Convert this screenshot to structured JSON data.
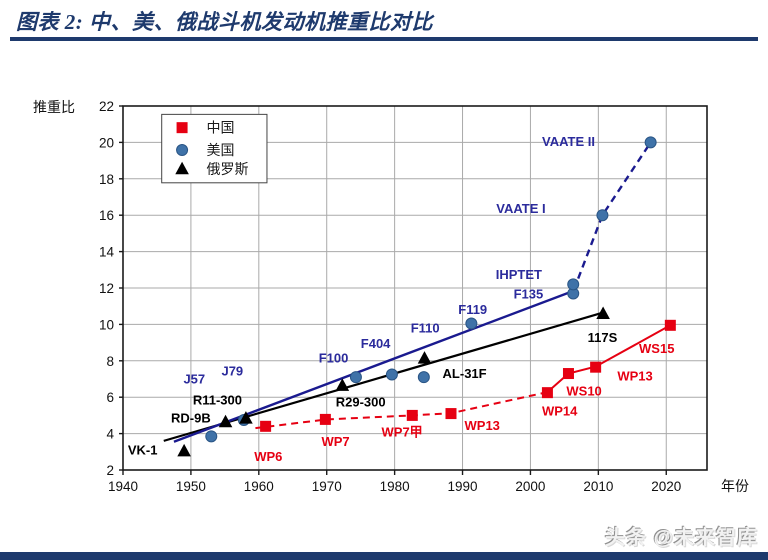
{
  "page": {
    "title": "图表 2:  中、美、俄战斗机发动机推重比对比",
    "watermark": "头条 @未来智库"
  },
  "colors": {
    "title_navy": "#1e3a6d",
    "grid": "#aaaaaa",
    "axis": "#1a1a1a",
    "tick_text": "#111111",
    "china_red": "#e60012",
    "us_marker_blue": "#3f72a8",
    "us_marker_edge": "#2a5585",
    "us_line_navy": "#1a1a8f",
    "us_label_navy": "#2b2b9c",
    "russia_black": "#000000"
  },
  "chart_data": {
    "type": "scatter",
    "title": "",
    "ylabel": "推重比",
    "xlabel": "年份",
    "xlim": [
      1940,
      2026
    ],
    "ylim": [
      2,
      22
    ],
    "x_ticks": [
      1940,
      1950,
      1960,
      1970,
      1980,
      1990,
      2000,
      2010,
      2020
    ],
    "y_ticks": [
      2,
      4,
      6,
      8,
      10,
      12,
      14,
      16,
      18,
      20,
      22
    ],
    "grid": true,
    "legend": {
      "box": {
        "x1": 1945.7,
        "y1": 21.54,
        "x2": 1961.2,
        "y2": 17.78
      },
      "marker_x": 1948.7,
      "text_x": 1952.3,
      "rows": [
        {
          "label": "中国",
          "marker": "square",
          "color": "#e60012",
          "y": 20.81
        },
        {
          "label": "美国",
          "marker": "circle",
          "color": "#3f72a8",
          "y": 19.58
        },
        {
          "label": "俄罗斯",
          "marker": "triangle",
          "color": "#000000",
          "y": 18.55
        }
      ]
    },
    "series": [
      {
        "name": "中国",
        "marker": "square",
        "color": "#e60012",
        "label_color": "#e60012",
        "points": [
          {
            "label": "WP6",
            "x": 1961.0,
            "y": 4.4,
            "lx": 1961.4,
            "ly": 2.75
          },
          {
            "label": "WP7",
            "x": 1969.8,
            "y": 4.78,
            "lx": 1971.3,
            "ly": 3.56
          },
          {
            "label": "WP7甲",
            "x": 1982.6,
            "y": 5.0,
            "lx": 1981.1,
            "ly": 4.08
          },
          {
            "label": "WP13",
            "x": 1988.3,
            "y": 5.1,
            "lx": 1992.9,
            "ly": 4.44
          },
          {
            "label": "WP14",
            "x": 2002.5,
            "y": 6.25,
            "lx": 2004.3,
            "ly": 5.23
          },
          {
            "label": "WS10",
            "x": 2005.6,
            "y": 7.3,
            "lx": 2007.9,
            "ly": 6.35
          },
          {
            "label": "WP13",
            "x": 2009.6,
            "y": 7.65,
            "lx": 2015.4,
            "ly": 7.17
          },
          {
            "label": "WS15",
            "x": 2020.6,
            "y": 9.95,
            "lx": 2018.6,
            "ly": 8.68
          }
        ]
      },
      {
        "name": "美国",
        "marker": "circle",
        "color": "#3f72a8",
        "label_color": "#2b2b9c",
        "points": [
          {
            "label": "J57",
            "x": 1953.0,
            "y": 3.85,
            "lx": 1950.5,
            "ly": 7.0
          },
          {
            "label": "J79",
            "x": 1957.8,
            "y": 4.75,
            "lx": 1956.1,
            "ly": 7.45
          },
          {
            "label": "F100",
            "x": 1974.3,
            "y": 7.1,
            "lx": 1971.0,
            "ly": 8.15
          },
          {
            "label": "F404",
            "x": 1979.6,
            "y": 7.25,
            "lx": 1977.2,
            "ly": 8.95
          },
          {
            "label": "F110",
            "x": 1984.3,
            "y": 7.1,
            "lx": 1984.5,
            "ly": 9.8
          },
          {
            "label": "F119",
            "x": 1991.3,
            "y": 10.05,
            "lx": 1991.5,
            "ly": 10.82
          },
          {
            "label": "F135",
            "x": 2006.3,
            "y": 11.7,
            "lx": 1999.7,
            "ly": 11.66
          },
          {
            "label": "IHPTET",
            "x": 2006.3,
            "y": 12.2,
            "lx": 1998.3,
            "ly": 12.75
          },
          {
            "label": "VAATE I",
            "x": 2010.6,
            "y": 16.0,
            "lx": 1998.6,
            "ly": 16.37
          },
          {
            "label": "VAATE II",
            "x": 2017.7,
            "y": 20.0,
            "lx": 2005.6,
            "ly": 20.05
          }
        ]
      },
      {
        "name": "俄罗斯",
        "marker": "triangle",
        "color": "#000000",
        "label_color": "#000000",
        "points": [
          {
            "label": "VK-1",
            "x": 1949.0,
            "y": 3.05,
            "lx": 1942.9,
            "ly": 3.1
          },
          {
            "label": "RD-9B",
            "x": 1955.1,
            "y": 4.65,
            "lx": 1950.0,
            "ly": 4.85
          },
          {
            "label": "R11-300",
            "x": 1958.1,
            "y": 4.85,
            "lx": 1953.9,
            "ly": 5.85
          },
          {
            "label": "R29-300",
            "x": 1972.3,
            "y": 6.65,
            "lx": 1975.0,
            "ly": 5.75
          },
          {
            "label": "AL-31F",
            "x": 1984.4,
            "y": 8.15,
            "lx": 1990.3,
            "ly": 7.3
          },
          {
            "label": "117S",
            "x": 2010.7,
            "y": 10.6,
            "lx": 2010.6,
            "ly": 9.28
          }
        ]
      }
    ],
    "draw_order": [
      1,
      2,
      0
    ],
    "trend_lines": [
      {
        "series": "中国",
        "style": "dashed",
        "color": "#e60012",
        "width": 2,
        "points": [
          [
            1959.5,
            4.3
          ],
          [
            1970,
            4.78
          ],
          [
            1982.6,
            5.0
          ],
          [
            1988.3,
            5.12
          ],
          [
            2002.5,
            6.28
          ]
        ]
      },
      {
        "series": "中国",
        "style": "solid",
        "color": "#e60012",
        "width": 2,
        "points": [
          [
            2002.5,
            6.28
          ],
          [
            2005.6,
            7.3
          ],
          [
            2009.6,
            7.68
          ],
          [
            2020.6,
            9.95
          ]
        ]
      },
      {
        "series": "俄罗斯",
        "style": "solid",
        "color": "#000000",
        "width": 2.2,
        "points": [
          [
            1946.0,
            3.6
          ],
          [
            2010.7,
            10.65
          ]
        ]
      },
      {
        "series": "美国",
        "style": "solid",
        "color": "#1a1a8f",
        "width": 2.4,
        "points": [
          [
            1947.5,
            3.55
          ],
          [
            2006.4,
            11.85
          ]
        ]
      },
      {
        "series": "美国",
        "style": "dashed",
        "color": "#1a1a8f",
        "width": 2.4,
        "points": [
          [
            2006.4,
            11.9
          ],
          [
            2010.6,
            16.0
          ],
          [
            2017.7,
            20.0
          ]
        ]
      }
    ]
  }
}
